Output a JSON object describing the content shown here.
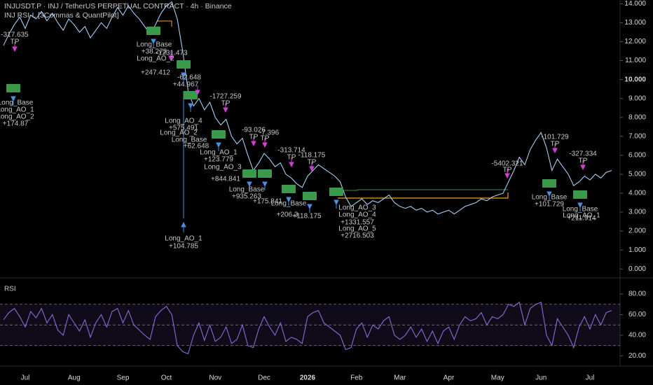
{
  "chart_data": [
    {
      "type": "line",
      "title": "INJUSDT.P · INJ / TetherUS PERPETUAL CONTRACT · 4h · Binance",
      "subtitle": "INJ RSI-L [3Commas & QuantPilot]",
      "color": "#a8cdf5",
      "values": [
        11.8,
        12.4,
        12.9,
        13.3,
        12.7,
        13.4,
        13.2,
        13.6,
        13.1,
        13.5,
        13.0,
        12.6,
        13.2,
        12.9,
        12.5,
        12.8,
        12.2,
        12.6,
        13.0,
        12.7,
        13.3,
        13.8,
        13.4,
        13.9,
        13.5,
        13.2,
        12.8,
        12.4,
        12.9,
        13.5,
        13.9,
        14.1,
        13.2,
        11.5,
        9.4,
        8.6,
        9.0,
        8.4,
        8.8,
        8.0,
        7.6,
        7.9,
        7.0,
        6.6,
        6.9,
        6.0,
        5.2,
        5.6,
        6.1,
        5.8,
        5.4,
        5.6,
        5.0,
        4.8,
        4.5,
        4.3,
        4.9,
        5.2,
        5.5,
        5.3,
        5.1,
        4.9,
        4.6,
        3.8,
        3.3,
        3.5,
        3.7,
        3.4,
        3.6,
        3.5,
        3.7,
        3.9,
        3.5,
        3.3,
        3.2,
        3.3,
        3.1,
        3.2,
        3.0,
        3.1,
        2.9,
        3.0,
        3.1,
        2.9,
        3.1,
        3.3,
        3.4,
        3.5,
        3.7,
        3.6,
        3.8,
        3.9,
        4.0,
        4.6,
        5.2,
        5.9,
        5.5,
        6.3,
        6.8,
        7.2,
        6.4,
        5.2,
        5.8,
        5.4,
        5.0,
        4.4,
        4.6,
        4.9,
        4.7,
        5.0,
        4.8,
        5.1,
        5.2
      ],
      "ylim": [
        -0.4,
        14.2
      ],
      "yticks": [
        {
          "value": 14,
          "label": "14.000"
        },
        {
          "value": 13,
          "label": "13.000"
        },
        {
          "value": 12,
          "label": "12.000"
        },
        {
          "value": 11,
          "label": "11.000"
        },
        {
          "value": 10,
          "label": "10.000"
        },
        {
          "value": 9,
          "label": "9.000"
        },
        {
          "value": 8,
          "label": "8.000"
        },
        {
          "value": 7,
          "label": "7.000"
        },
        {
          "value": 6,
          "label": "6.000"
        },
        {
          "value": 5,
          "label": "5.000"
        },
        {
          "value": 4,
          "label": "4.000"
        },
        {
          "value": 3,
          "label": "3.000"
        },
        {
          "value": 2,
          "label": "2.000"
        },
        {
          "value": 1,
          "label": "1.000"
        },
        {
          "value": 0,
          "label": "0.000"
        }
      ],
      "annotations": [
        "-317.635",
        "TP",
        "Long_Base",
        "Long_AO_1",
        "Long_AO_2",
        "+174.87",
        "Long_Base",
        "+38.273",
        "Long_AO_2",
        "+247.412",
        "-1231.473",
        "-62.648",
        "+44.967",
        "-1727.259",
        "TP",
        "Long_AO_4",
        "+575.491",
        "Long_AO_2",
        "Long_Base",
        "+62.648",
        "-93.026",
        "TP",
        "-7.396",
        "TP",
        "Long_AO_1",
        "+123.779",
        "-313.714",
        "TP",
        "-118.175",
        "TP",
        "Long_AO_3",
        "+844.841",
        "Long_Base",
        "+935.263",
        "+175.841",
        "Long_Base",
        "+206.3",
        "+118.175",
        "Long_AO_3",
        "Long_AO_4",
        "+1331.557",
        "Long_AO_5",
        "+2716.503",
        "Long_AO_1",
        "+104.785",
        "-5402.321",
        "TP",
        "-101.729",
        "TP",
        "-327.334",
        "TP",
        "Long_Base",
        "+101.729",
        "Long_Base",
        "Long_AO_1",
        "+211.914"
      ]
    },
    {
      "type": "line",
      "title": "RSI",
      "color": "#8e6ad8",
      "categories": [
        null,
        null,
        null,
        null,
        "Jul",
        null,
        null,
        null,
        null,
        null,
        null,
        null,
        null,
        "Aug",
        null,
        null,
        null,
        null,
        null,
        null,
        null,
        null,
        "Sep",
        null,
        null,
        null,
        null,
        null,
        null,
        null,
        "Oct",
        null,
        null,
        null,
        null,
        null,
        null,
        null,
        null,
        "Nov",
        null,
        null,
        null,
        null,
        null,
        null,
        null,
        null,
        "Dec",
        null,
        null,
        null,
        null,
        null,
        null,
        null,
        "2026",
        null,
        null,
        null,
        null,
        null,
        null,
        null,
        null,
        "Feb",
        null,
        null,
        null,
        null,
        null,
        null,
        null,
        "Mar",
        null,
        null,
        null,
        null,
        null,
        null,
        null,
        null,
        "Apr",
        null,
        null,
        null,
        null,
        null,
        null,
        null,
        null,
        "May",
        null,
        null,
        null,
        null,
        null,
        null,
        null,
        "Jun",
        null,
        null,
        null,
        null,
        null,
        null,
        null,
        null,
        "Jul",
        null,
        null,
        null,
        null
      ],
      "values": [
        55,
        62,
        66,
        58,
        48,
        63,
        57,
        66,
        52,
        60,
        45,
        40,
        60,
        52,
        44,
        55,
        38,
        52,
        60,
        48,
        63,
        66,
        52,
        64,
        50,
        45,
        40,
        36,
        58,
        64,
        68,
        60,
        30,
        24,
        22,
        40,
        52,
        35,
        50,
        34,
        38,
        48,
        32,
        36,
        50,
        30,
        28,
        46,
        58,
        48,
        40,
        52,
        34,
        38,
        36,
        32,
        58,
        62,
        64,
        52,
        48,
        44,
        40,
        26,
        28,
        46,
        52,
        38,
        50,
        46,
        54,
        58,
        40,
        36,
        40,
        48,
        38,
        46,
        34,
        44,
        32,
        44,
        48,
        36,
        50,
        58,
        54,
        56,
        62,
        50,
        58,
        56,
        60,
        70,
        68,
        72,
        50,
        66,
        70,
        72,
        40,
        30,
        56,
        48,
        40,
        28,
        48,
        58,
        46,
        60,
        50,
        62,
        64
      ],
      "ylim": [
        10,
        95
      ],
      "yticks": [
        {
          "value": 80,
          "label": "80.00"
        },
        {
          "value": 60,
          "label": "60.00"
        },
        {
          "value": 40,
          "label": "40.00"
        },
        {
          "value": 20,
          "label": "20.00"
        }
      ],
      "levels": [
        70,
        50,
        30
      ]
    }
  ]
}
